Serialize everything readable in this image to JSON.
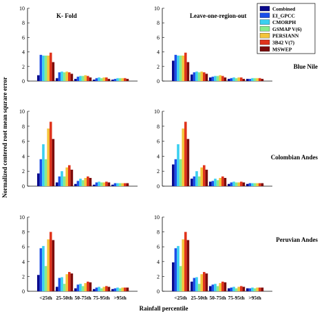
{
  "figure": {
    "ylabel": "Normalized centered root mean squrare error",
    "xlabel": "Rainfall percentile",
    "row_labels": [
      "Blue Nile",
      "Colombian Andes",
      "Peruvian Andes"
    ],
    "column_titles": [
      "K- Fold",
      "Leave-one-region-out"
    ]
  },
  "legend": {
    "placement": "top-right",
    "entries": [
      {
        "name": "Combined",
        "color": "#0a0a8c"
      },
      {
        "name": "EI_GPCC",
        "color": "#1c4fe8"
      },
      {
        "name": "CMORPH",
        "color": "#3ad0f0"
      },
      {
        "name": "GSMAP V(6)",
        "color": "#86ec8c"
      },
      {
        "name": "PERSIANN",
        "color": "#f4c43a"
      },
      {
        "name": "3B42 V(7)",
        "color": "#e0341c"
      },
      {
        "name": "MSWEP",
        "color": "#7c0c0c"
      }
    ]
  },
  "chart_data": [
    {
      "type": "bar",
      "title": "K- Fold",
      "row": "Blue Nile",
      "ylim": [
        0,
        10
      ],
      "yticks": [
        0,
        2,
        4,
        6,
        8,
        10
      ],
      "categories": [
        "<25th",
        "25-50th",
        "50-75th",
        "75-95th",
        ">95th"
      ],
      "series": [
        {
          "name": "Combined",
          "values": [
            0.8,
            0.4,
            0.3,
            0.2,
            0.2
          ]
        },
        {
          "name": "EI_GPCC",
          "values": [
            3.6,
            1.2,
            0.6,
            0.4,
            0.3
          ]
        },
        {
          "name": "CMORPH",
          "values": [
            3.5,
            1.3,
            0.7,
            0.5,
            0.4
          ]
        },
        {
          "name": "GSMAP V(6)",
          "values": [
            3.5,
            1.2,
            0.7,
            0.4,
            0.4
          ]
        },
        {
          "name": "PERSIANN",
          "values": [
            3.5,
            1.3,
            0.8,
            0.5,
            0.4
          ]
        },
        {
          "name": "3B42 V(7)",
          "values": [
            3.9,
            1.2,
            0.7,
            0.5,
            0.4
          ]
        },
        {
          "name": "MSWEP",
          "values": [
            2.6,
            1.0,
            0.5,
            0.3,
            0.3
          ]
        }
      ]
    },
    {
      "type": "bar",
      "title": "Leave-one-region-out",
      "row": "Blue Nile",
      "ylim": [
        0,
        10
      ],
      "yticks": [
        0,
        2,
        4,
        6,
        8,
        10
      ],
      "categories": [
        "<25th",
        "25-50th",
        "50-75th",
        "75-95th",
        ">95th"
      ],
      "series": [
        {
          "name": "Combined",
          "values": [
            2.8,
            0.9,
            0.5,
            0.3,
            0.3
          ]
        },
        {
          "name": "EI_GPCC",
          "values": [
            3.6,
            1.2,
            0.6,
            0.4,
            0.3
          ]
        },
        {
          "name": "CMORPH",
          "values": [
            3.5,
            1.3,
            0.7,
            0.5,
            0.4
          ]
        },
        {
          "name": "GSMAP V(6)",
          "values": [
            3.5,
            1.2,
            0.7,
            0.4,
            0.4
          ]
        },
        {
          "name": "PERSIANN",
          "values": [
            3.5,
            1.3,
            0.8,
            0.5,
            0.4
          ]
        },
        {
          "name": "3B42 V(7)",
          "values": [
            3.9,
            1.2,
            0.7,
            0.5,
            0.4
          ]
        },
        {
          "name": "MSWEP",
          "values": [
            2.6,
            1.0,
            0.5,
            0.3,
            0.3
          ]
        }
      ]
    },
    {
      "type": "bar",
      "title": "",
      "row": "Colombian Andes",
      "ylim": [
        0,
        10
      ],
      "yticks": [
        0,
        2,
        4,
        6,
        8,
        10
      ],
      "categories": [
        "<25th",
        "25-50th",
        "50-75th",
        "75-95th",
        ">95th"
      ],
      "series": [
        {
          "name": "Combined",
          "values": [
            1.7,
            0.5,
            0.3,
            0.2,
            0.2
          ]
        },
        {
          "name": "EI_GPCC",
          "values": [
            3.6,
            1.3,
            0.7,
            0.5,
            0.4
          ]
        },
        {
          "name": "CMORPH",
          "values": [
            5.6,
            2.0,
            1.0,
            0.6,
            0.4
          ]
        },
        {
          "name": "GSMAP V(6)",
          "values": [
            3.6,
            1.3,
            0.8,
            0.5,
            0.4
          ]
        },
        {
          "name": "PERSIANN",
          "values": [
            7.7,
            2.5,
            1.1,
            0.5,
            0.4
          ]
        },
        {
          "name": "3B42 V(7)",
          "values": [
            8.6,
            2.8,
            1.3,
            0.6,
            0.4
          ]
        },
        {
          "name": "MSWEP",
          "values": [
            6.3,
            2.2,
            1.1,
            0.5,
            0.4
          ]
        }
      ]
    },
    {
      "type": "bar",
      "title": "",
      "row": "Colombian Andes",
      "ylim": [
        0,
        10
      ],
      "yticks": [
        0,
        2,
        4,
        6,
        8,
        10
      ],
      "categories": [
        "<25th",
        "25-50th",
        "50-75th",
        "75-95th",
        ">95th"
      ],
      "series": [
        {
          "name": "Combined",
          "values": [
            2.9,
            1.0,
            0.6,
            0.3,
            0.3
          ]
        },
        {
          "name": "EI_GPCC",
          "values": [
            3.6,
            1.3,
            0.7,
            0.5,
            0.4
          ]
        },
        {
          "name": "CMORPH",
          "values": [
            5.6,
            2.0,
            1.0,
            0.6,
            0.4
          ]
        },
        {
          "name": "GSMAP V(6)",
          "values": [
            3.6,
            1.3,
            0.8,
            0.5,
            0.4
          ]
        },
        {
          "name": "PERSIANN",
          "values": [
            7.7,
            2.5,
            1.1,
            0.5,
            0.4
          ]
        },
        {
          "name": "3B42 V(7)",
          "values": [
            8.6,
            2.8,
            1.3,
            0.6,
            0.4
          ]
        },
        {
          "name": "MSWEP",
          "values": [
            6.3,
            2.2,
            1.1,
            0.5,
            0.4
          ]
        }
      ]
    },
    {
      "type": "bar",
      "title": "",
      "row": "Peruvian Andes",
      "ylim": [
        0,
        10
      ],
      "yticks": [
        0,
        2,
        4,
        6,
        8,
        10
      ],
      "categories": [
        "<25th",
        "25-50th",
        "50-75th",
        "75-95th",
        ">95th"
      ],
      "series": [
        {
          "name": "Combined",
          "values": [
            2.2,
            0.6,
            0.4,
            0.3,
            0.3
          ]
        },
        {
          "name": "EI_GPCC",
          "values": [
            5.8,
            1.8,
            0.9,
            0.5,
            0.4
          ]
        },
        {
          "name": "CMORPH",
          "values": [
            6.1,
            1.9,
            1.0,
            0.6,
            0.5
          ]
        },
        {
          "name": "GSMAP V(6)",
          "values": [
            3.4,
            1.0,
            0.7,
            0.4,
            0.4
          ]
        },
        {
          "name": "PERSIANN",
          "values": [
            7.0,
            2.3,
            1.1,
            0.6,
            0.5
          ]
        },
        {
          "name": "3B42 V(7)",
          "values": [
            8.0,
            2.6,
            1.3,
            0.7,
            0.5
          ]
        },
        {
          "name": "MSWEP",
          "values": [
            6.9,
            2.4,
            1.2,
            0.6,
            0.5
          ]
        }
      ]
    },
    {
      "type": "bar",
      "title": "",
      "row": "Peruvian Andes",
      "ylim": [
        0,
        10
      ],
      "yticks": [
        0,
        2,
        4,
        6,
        8,
        10
      ],
      "categories": [
        "<25th",
        "25-50th",
        "50-75th",
        "75-95th",
        ">95th"
      ],
      "series": [
        {
          "name": "Combined",
          "values": [
            3.9,
            1.3,
            0.7,
            0.4,
            0.4
          ]
        },
        {
          "name": "EI_GPCC",
          "values": [
            5.8,
            1.8,
            0.9,
            0.5,
            0.4
          ]
        },
        {
          "name": "CMORPH",
          "values": [
            6.1,
            1.9,
            1.0,
            0.6,
            0.5
          ]
        },
        {
          "name": "GSMAP V(6)",
          "values": [
            3.4,
            1.0,
            0.7,
            0.4,
            0.4
          ]
        },
        {
          "name": "PERSIANN",
          "values": [
            7.0,
            2.3,
            1.1,
            0.6,
            0.5
          ]
        },
        {
          "name": "3B42 V(7)",
          "values": [
            8.0,
            2.6,
            1.3,
            0.7,
            0.5
          ]
        },
        {
          "name": "MSWEP",
          "values": [
            6.9,
            2.4,
            1.2,
            0.6,
            0.5
          ]
        }
      ]
    }
  ]
}
